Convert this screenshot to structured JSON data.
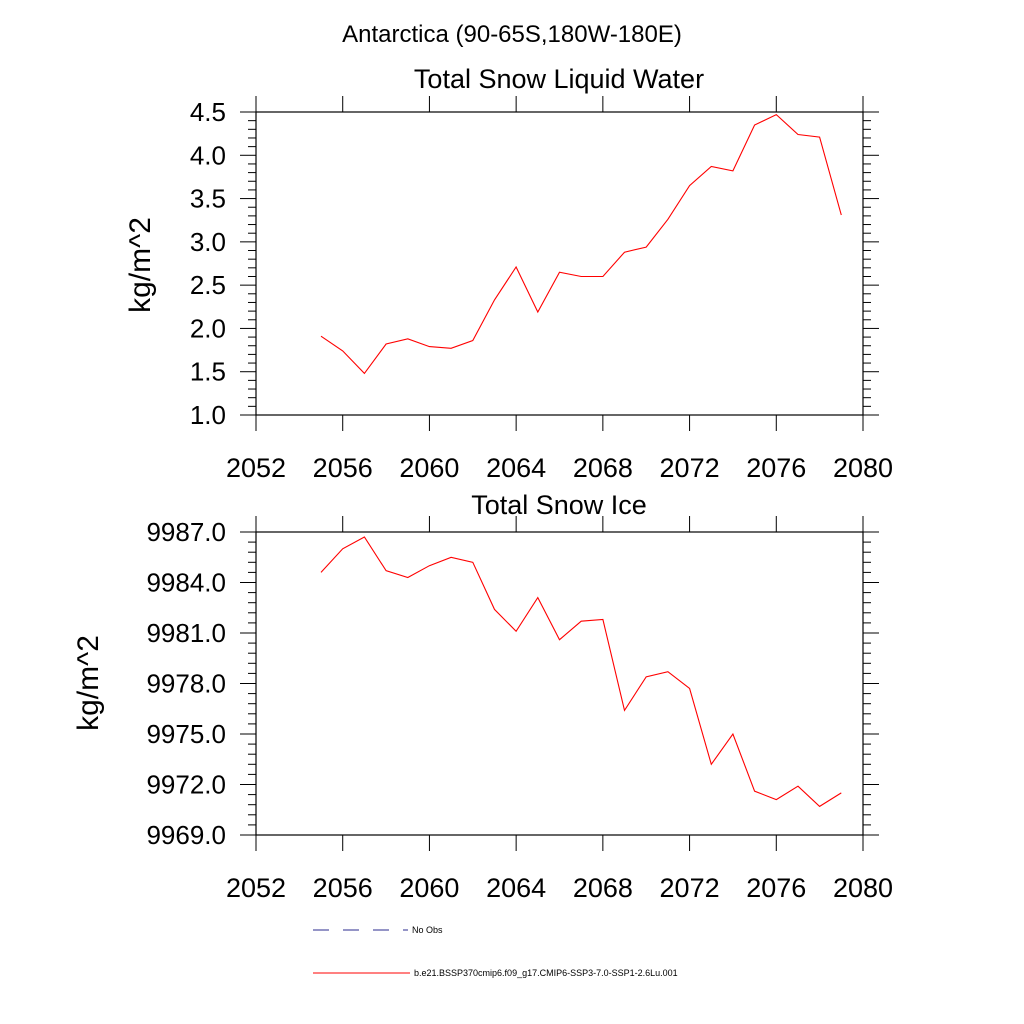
{
  "suptitle": "Antarctica (90-65S,180W-180E)",
  "colors": {
    "series": "#ff0000",
    "obs": "#2b2b8f",
    "axis": "#000000"
  },
  "legend": [
    {
      "label": "No Obs",
      "style": "dashed"
    },
    {
      "label": "b.e21.BSSP370cmip6.f09_g17.CMIP6-SSP3-7.0-SSP1-2.6Lu.001",
      "style": "solid"
    }
  ],
  "chart_data": [
    {
      "type": "line",
      "title": "Total Snow Liquid Water",
      "ylabel": "kg/m^2",
      "xlabel": "",
      "xlim": [
        2052,
        2080
      ],
      "ylim": [
        1.0,
        4.5
      ],
      "xticks": [
        2052,
        2056,
        2060,
        2064,
        2068,
        2072,
        2076,
        2080
      ],
      "yticks": [
        1.0,
        1.5,
        2.0,
        2.5,
        3.0,
        3.5,
        4.0,
        4.5
      ],
      "ytick_labels": [
        "1.0",
        "1.5",
        "2.0",
        "2.5",
        "3.0",
        "3.5",
        "4.0",
        "4.5"
      ],
      "x": [
        2055,
        2056,
        2057,
        2058,
        2059,
        2060,
        2061,
        2062,
        2063,
        2064,
        2065,
        2066,
        2067,
        2068,
        2069,
        2070,
        2071,
        2072,
        2073,
        2074,
        2075,
        2076,
        2077,
        2078,
        2079
      ],
      "series": [
        {
          "name": "b.e21.BSSP370cmip6.f09_g17.CMIP6-SSP3-7.0-SSP1-2.6Lu.001",
          "values": [
            1.91,
            1.74,
            1.48,
            1.82,
            1.88,
            1.79,
            1.77,
            1.86,
            2.33,
            2.71,
            2.19,
            2.65,
            2.6,
            2.6,
            2.88,
            2.94,
            3.26,
            3.65,
            3.87,
            3.82,
            4.35,
            4.47,
            4.24,
            4.21,
            3.31
          ]
        }
      ]
    },
    {
      "type": "line",
      "title": "Total Snow Ice",
      "ylabel": "kg/m^2",
      "xlabel": "",
      "xlim": [
        2052,
        2080
      ],
      "ylim": [
        9969.0,
        9987.0
      ],
      "xticks": [
        2052,
        2056,
        2060,
        2064,
        2068,
        2072,
        2076,
        2080
      ],
      "yticks": [
        9969.0,
        9972.0,
        9975.0,
        9978.0,
        9981.0,
        9984.0,
        9987.0
      ],
      "ytick_labels": [
        "9969.0",
        "9972.0",
        "9975.0",
        "9978.0",
        "9981.0",
        "9984.0",
        "9987.0"
      ],
      "x": [
        2055,
        2056,
        2057,
        2058,
        2059,
        2060,
        2061,
        2062,
        2063,
        2064,
        2065,
        2066,
        2067,
        2068,
        2069,
        2070,
        2071,
        2072,
        2073,
        2074,
        2075,
        2076,
        2077,
        2078,
        2079
      ],
      "series": [
        {
          "name": "b.e21.BSSP370cmip6.f09_g17.CMIP6-SSP3-7.0-SSP1-2.6Lu.001",
          "values": [
            9984.6,
            9986.0,
            9986.7,
            9984.7,
            9984.3,
            9985.0,
            9985.5,
            9985.2,
            9982.4,
            9981.1,
            9983.1,
            9980.6,
            9981.7,
            9981.8,
            9976.4,
            9978.4,
            9978.7,
            9977.7,
            9973.2,
            9975.0,
            9971.6,
            9971.1,
            9971.9,
            9970.7,
            9971.5
          ]
        }
      ]
    }
  ]
}
